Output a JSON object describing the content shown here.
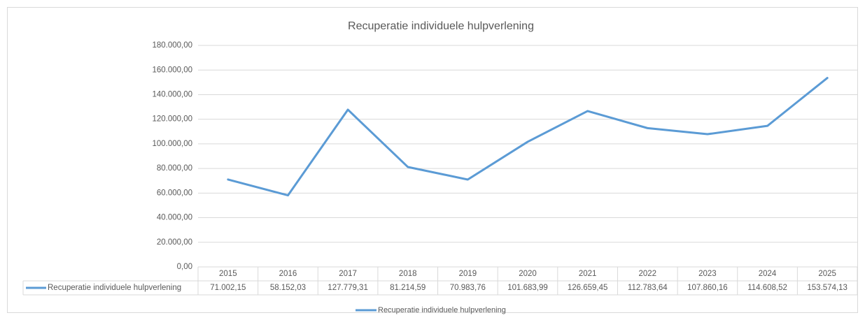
{
  "chart_data": {
    "type": "line",
    "title": "Recuperatie individuele hulpverlening",
    "categories": [
      "2015",
      "2016",
      "2017",
      "2018",
      "2019",
      "2020",
      "2021",
      "2022",
      "2023",
      "2024",
      "2025"
    ],
    "series": [
      {
        "name": "Recuperatie individuele hulpverlening",
        "color": "#5b9bd5",
        "values": [
          71002.15,
          58152.03,
          127779.31,
          81214.59,
          70983.76,
          101683.99,
          126659.45,
          112783.64,
          107860.16,
          114608.52,
          153574.13
        ],
        "value_labels": [
          "71.002,15",
          "58.152,03",
          "127.779,31",
          "81.214,59",
          "70.983,76",
          "101.683,99",
          "126.659,45",
          "112.783,64",
          "107.860,16",
          "114.608,52",
          "153.574,13"
        ]
      }
    ],
    "ylim": [
      0,
      180000
    ],
    "yticks": [
      {
        "value": 0,
        "label": "0,00"
      },
      {
        "value": 20000,
        "label": "20.000,00"
      },
      {
        "value": 40000,
        "label": "40.000,00"
      },
      {
        "value": 60000,
        "label": "60.000,00"
      },
      {
        "value": 80000,
        "label": "80.000,00"
      },
      {
        "value": 100000,
        "label": "100.000,00"
      },
      {
        "value": 120000,
        "label": "120.000,00"
      },
      {
        "value": 140000,
        "label": "140.000,00"
      },
      {
        "value": 160000,
        "label": "160.000,00"
      },
      {
        "value": 180000,
        "label": "180.000,00"
      }
    ],
    "grid": true,
    "data_table": true,
    "legend": "bottom"
  }
}
